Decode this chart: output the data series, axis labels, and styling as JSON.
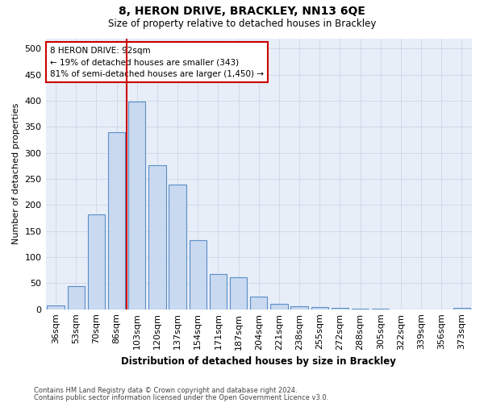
{
  "title1": "8, HERON DRIVE, BRACKLEY, NN13 6QE",
  "title2": "Size of property relative to detached houses in Brackley",
  "xlabel": "Distribution of detached houses by size in Brackley",
  "ylabel": "Number of detached properties",
  "categories": [
    "36sqm",
    "53sqm",
    "70sqm",
    "86sqm",
    "103sqm",
    "120sqm",
    "137sqm",
    "154sqm",
    "171sqm",
    "187sqm",
    "204sqm",
    "221sqm",
    "238sqm",
    "255sqm",
    "272sqm",
    "288sqm",
    "305sqm",
    "322sqm",
    "339sqm",
    "356sqm",
    "373sqm"
  ],
  "values": [
    8,
    45,
    182,
    340,
    398,
    277,
    240,
    133,
    67,
    61,
    25,
    10,
    5,
    4,
    2,
    1,
    1,
    0,
    0,
    0,
    3
  ],
  "bar_color": "#c9d9f0",
  "bar_edge_color": "#5b8ec7",
  "vline_x": 3.5,
  "vline_color": "#cc0000",
  "annotation_text": "8 HERON DRIVE: 92sqm\n← 19% of detached houses are smaller (343)\n81% of semi-detached houses are larger (1,450) →",
  "annotation_box_color": "#ffffff",
  "annotation_box_edge": "#cc0000",
  "ylim": [
    0,
    520
  ],
  "yticks": [
    0,
    50,
    100,
    150,
    200,
    250,
    300,
    350,
    400,
    450,
    500
  ],
  "grid_color": "#c8d8e8",
  "bg_color": "#e8eef8",
  "fig_color": "#ffffff",
  "footer1": "Contains HM Land Registry data © Crown copyright and database right 2024.",
  "footer2": "Contains public sector information licensed under the Open Government Licence v3.0."
}
